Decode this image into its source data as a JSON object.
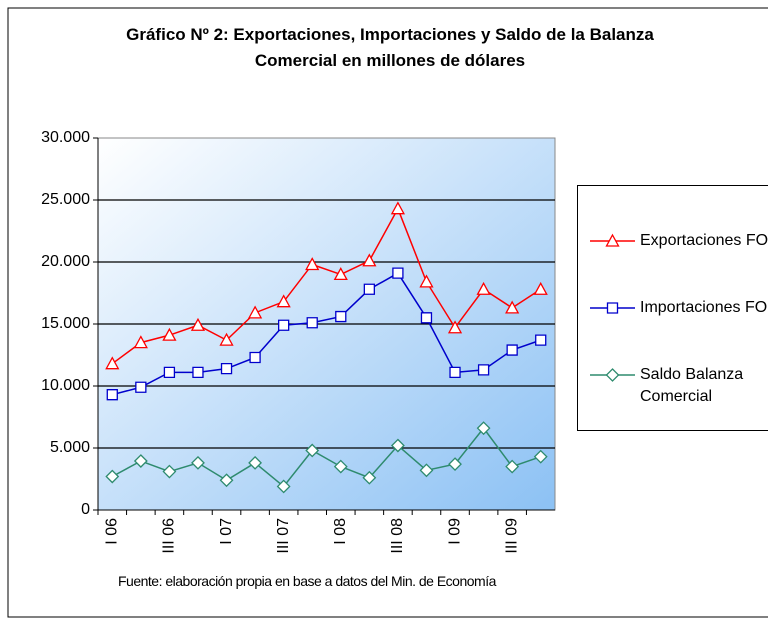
{
  "chart_data": {
    "type": "line",
    "title": "Gráfico Nº 2: Exportaciones, Importaciones y Saldo de la Balanza Comercial en millones de dólares",
    "source": "Fuente: elaboración propia en base a datos del Min. de Economía",
    "categories": [
      "I 06",
      null,
      "III 06",
      null,
      "I 07",
      null,
      "III 07",
      null,
      "I 08",
      null,
      "III 08",
      null,
      "I 09",
      null,
      "III 09",
      null
    ],
    "series": [
      {
        "name": "Exportaciones FOB",
        "color": "#ff0000",
        "marker": "triangle",
        "values": [
          11800,
          13500,
          14100,
          14900,
          13700,
          15900,
          16800,
          19800,
          19000,
          20100,
          24300,
          18400,
          14700,
          17800,
          16300,
          17800
        ]
      },
      {
        "name": "Importaciones FOB",
        "color": "#0000cc",
        "marker": "square",
        "values": [
          9300,
          9900,
          11100,
          11100,
          11400,
          12300,
          14900,
          15100,
          15600,
          17800,
          19100,
          15500,
          11100,
          11300,
          12900,
          13700
        ]
      },
      {
        "name": "Saldo Balanza Comercial",
        "color": "#2e8b6e",
        "marker": "diamond",
        "values": [
          2700,
          3950,
          3100,
          3800,
          2400,
          3800,
          1900,
          4800,
          3500,
          2600,
          5200,
          3200,
          3700,
          6600,
          3500,
          4300
        ]
      }
    ],
    "ylim": [
      0,
      30000
    ],
    "yticks": [
      0,
      {
        "value": 5000,
        "label": "5.000"
      },
      {
        "value": 10000,
        "label": "10.000"
      },
      {
        "value": 15000,
        "label": "15.000"
      },
      {
        "value": 20000,
        "label": "20.000"
      },
      {
        "value": 25000,
        "label": "25.000"
      },
      {
        "value": 30000,
        "label": "30.000"
      }
    ],
    "grid": true
  }
}
